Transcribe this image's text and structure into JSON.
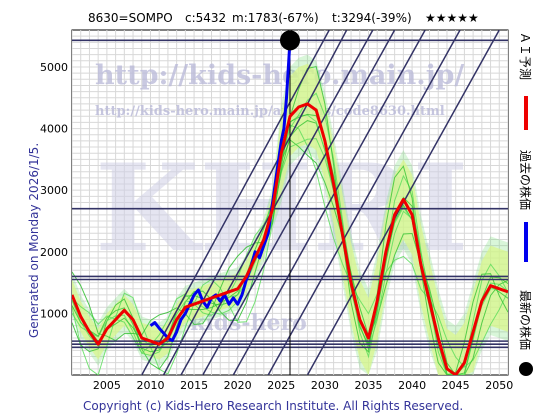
{
  "header": {
    "code_name": "8630=SOMPO",
    "current": "c:5432",
    "m_stat": "m:1783(-67%)",
    "t_stat": "t:3294(-39%)",
    "stars": "★★★★★"
  },
  "left_label": "Generated on Monday 2026/1/5.",
  "footer": "Copyright (c) Kids-Hero Research Institute. All Rights Reserved.",
  "watermarks": {
    "url": "http://kids-hero.main.jp/",
    "analysis_url": "http://kids-hero.main.jp/analysis/code8630.html",
    "big": "KHRI",
    "small": "kids-hero"
  },
  "legend": [
    {
      "label": "ＡＩ予測",
      "color": "#ee0000",
      "kind": "line"
    },
    {
      "label": "過去の株価",
      "color": "#0000ee",
      "kind": "line"
    },
    {
      "label": "最新の株価",
      "color": "#000000",
      "kind": "dot"
    }
  ],
  "chart_data": {
    "type": "line",
    "xlim": [
      2001,
      2051
    ],
    "ylim": [
      0,
      5600
    ],
    "x_ticks": [
      2005,
      2010,
      2015,
      2020,
      2025,
      2030,
      2035,
      2040,
      2045,
      2050
    ],
    "y_ticks": [
      1000,
      2000,
      3000,
      4000,
      5000
    ],
    "horizontal_levels": [
      5432,
      2700,
      1600,
      1550,
      550,
      500,
      450
    ],
    "latest": {
      "x": 2026.0,
      "y": 5432
    },
    "series": [
      {
        "name": "過去の株価",
        "color": "#0000ee",
        "points": [
          [
            2010.0,
            800
          ],
          [
            2010.5,
            850
          ],
          [
            2011.0,
            760
          ],
          [
            2011.5,
            680
          ],
          [
            2012.0,
            600
          ],
          [
            2012.5,
            560
          ],
          [
            2013.0,
            700
          ],
          [
            2013.5,
            900
          ],
          [
            2014.0,
            1000
          ],
          [
            2014.5,
            1150
          ],
          [
            2015.0,
            1300
          ],
          [
            2015.5,
            1380
          ],
          [
            2016.0,
            1200
          ],
          [
            2016.5,
            1100
          ],
          [
            2017.0,
            1250
          ],
          [
            2017.5,
            1300
          ],
          [
            2018.0,
            1200
          ],
          [
            2018.5,
            1300
          ],
          [
            2019.0,
            1150
          ],
          [
            2019.5,
            1250
          ],
          [
            2020.0,
            1150
          ],
          [
            2020.5,
            1300
          ],
          [
            2021.0,
            1550
          ],
          [
            2021.5,
            1750
          ],
          [
            2022.0,
            2000
          ],
          [
            2022.5,
            1900
          ],
          [
            2023.0,
            2100
          ],
          [
            2023.5,
            2300
          ],
          [
            2024.0,
            2800
          ],
          [
            2024.5,
            3300
          ],
          [
            2025.0,
            3800
          ],
          [
            2025.3,
            4000
          ],
          [
            2025.6,
            4500
          ],
          [
            2026.0,
            5432
          ]
        ]
      },
      {
        "name": "ＡＩ予測",
        "color": "#ee0000",
        "points": [
          [
            2001,
            1300
          ],
          [
            2002,
            950
          ],
          [
            2003,
            700
          ],
          [
            2004,
            500
          ],
          [
            2005,
            750
          ],
          [
            2006,
            900
          ],
          [
            2007,
            1050
          ],
          [
            2008,
            900
          ],
          [
            2009,
            600
          ],
          [
            2010,
            550
          ],
          [
            2011,
            500
          ],
          [
            2012,
            600
          ],
          [
            2013,
            900
          ],
          [
            2014,
            1100
          ],
          [
            2015,
            1150
          ],
          [
            2016,
            1200
          ],
          [
            2017,
            1250
          ],
          [
            2018,
            1300
          ],
          [
            2019,
            1350
          ],
          [
            2020,
            1400
          ],
          [
            2021,
            1600
          ],
          [
            2022,
            1900
          ],
          [
            2023,
            2200
          ],
          [
            2024,
            2700
          ],
          [
            2025,
            3600
          ],
          [
            2026,
            4200
          ],
          [
            2027,
            4350
          ],
          [
            2028,
            4400
          ],
          [
            2029,
            4300
          ],
          [
            2030,
            3800
          ],
          [
            2031,
            3100
          ],
          [
            2032,
            2300
          ],
          [
            2033,
            1500
          ],
          [
            2034,
            900
          ],
          [
            2035,
            600
          ],
          [
            2036,
            1200
          ],
          [
            2037,
            2000
          ],
          [
            2038,
            2600
          ],
          [
            2039,
            2850
          ],
          [
            2040,
            2600
          ],
          [
            2041,
            1800
          ],
          [
            2042,
            1200
          ],
          [
            2043,
            600
          ],
          [
            2044,
            100
          ],
          [
            2045,
            0
          ],
          [
            2046,
            200
          ],
          [
            2047,
            700
          ],
          [
            2048,
            1200
          ],
          [
            2049,
            1450
          ],
          [
            2050,
            1400
          ],
          [
            2051,
            1350
          ]
        ]
      }
    ]
  }
}
